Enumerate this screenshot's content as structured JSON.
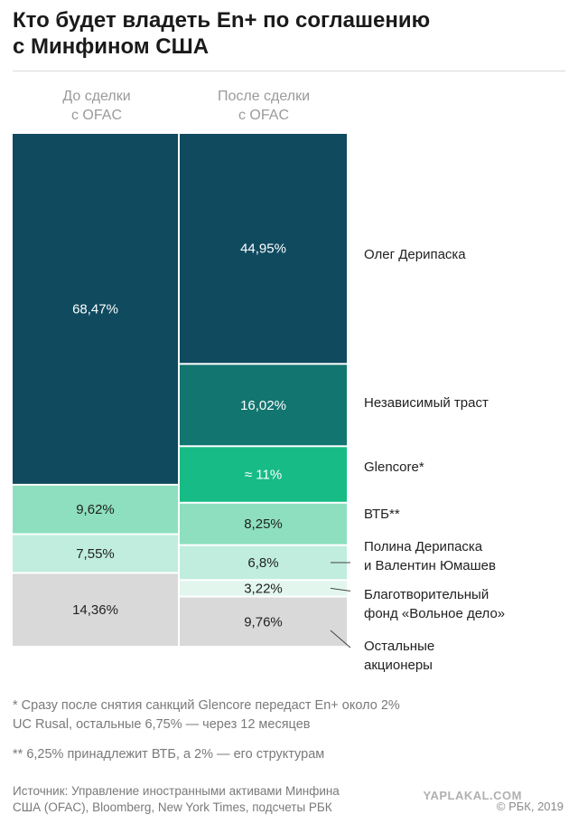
{
  "title_line1": "Кто будет владеть En+ по соглашению",
  "title_line2": "с Минфином США",
  "columns": [
    {
      "line1": "До сделки",
      "line2": "с OFAC"
    },
    {
      "line1": "После сделки",
      "line2": "с OFAC"
    }
  ],
  "colors": {
    "deripaska": "#0f4a5f",
    "trust": "#137570",
    "glencore": "#17bb85",
    "vtb": "#8ddfbf",
    "family": "#c0edde",
    "fund": "#e2f6ee",
    "others": "#d9d9d9",
    "text_light": "#ffffff",
    "text_dark": "#222222"
  },
  "chart_data": {
    "type": "bar",
    "stacked": true,
    "categories": [
      "До сделки с OFAC",
      "После сделки с OFAC"
    ],
    "series": [
      {
        "name": "Олег Дерипаска",
        "values": [
          68.47,
          44.95
        ],
        "labels": [
          "68,47%",
          "44,95%"
        ],
        "color": "deripaska",
        "text": "light",
        "legend": [
          "Олег Дерипаска"
        ]
      },
      {
        "name": "Независимый траст",
        "values": [
          null,
          16.02
        ],
        "labels": [
          "",
          "16,02%"
        ],
        "color": "trust",
        "text": "light",
        "legend": [
          "Независимый траст"
        ]
      },
      {
        "name": "Glencore*",
        "values": [
          null,
          11
        ],
        "labels": [
          "",
          "≈ 11%"
        ],
        "color": "glencore",
        "text": "light",
        "legend": [
          "Glencore*"
        ]
      },
      {
        "name": "ВТБ**",
        "values": [
          9.62,
          8.25
        ],
        "labels": [
          "9,62%",
          "8,25%"
        ],
        "color": "vtb",
        "text": "dark",
        "legend": [
          "ВТБ**"
        ]
      },
      {
        "name": "Полина Дерипаска и Валентин Юмашев",
        "values": [
          7.55,
          6.8
        ],
        "labels": [
          "7,55%",
          "6,8%"
        ],
        "color": "family",
        "text": "dark",
        "legend": [
          "Полина Дерипаска",
          "и Валентин Юмашев"
        ]
      },
      {
        "name": "Благотворительный фонд «Вольное дело»",
        "values": [
          null,
          3.22
        ],
        "labels": [
          "",
          "3,22%"
        ],
        "color": "fund",
        "text": "dark",
        "legend": [
          "Благотворительный",
          "фонд «Вольное дело»"
        ]
      },
      {
        "name": "Остальные акционеры",
        "values": [
          14.36,
          9.76
        ],
        "labels": [
          "14,36%",
          "9,76%"
        ],
        "color": "others",
        "text": "dark",
        "legend": [
          "Остальные",
          "акционеры"
        ]
      }
    ],
    "ylim": [
      0,
      100
    ],
    "legend_placement": "right"
  },
  "notes": {
    "glencore_1": "* Сразу после снятия санкций Glencore передаст En+ около 2%",
    "glencore_2": "UC Rusal, остальные 6,75% — через 12 месяцев",
    "vtb": "** 6,25% принадлежит ВТБ, а 2% — его структурам"
  },
  "source_1": "Источник: Управление иностранными активами Минфина",
  "source_2": "США (OFAC), Bloomberg, New York Times, подсчеты РБК",
  "watermark": "YAPLAKAL.COM",
  "copyright": "© РБК, 2019"
}
